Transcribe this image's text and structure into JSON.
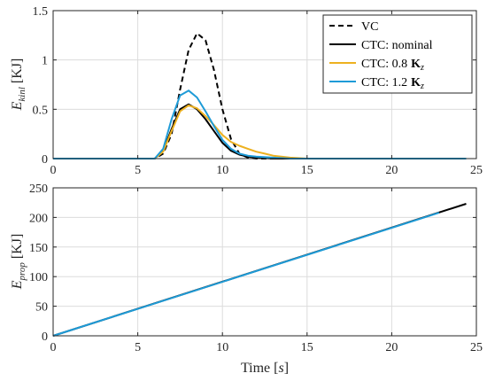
{
  "chart_data": [
    {
      "type": "line",
      "ylabel": {
        "base": "E",
        "sub": "kinl",
        "unit": "[KJ]"
      },
      "xlim": [
        0,
        25
      ],
      "ylim": [
        0,
        1.5
      ],
      "xticks": [
        "0",
        "5",
        "10",
        "15",
        "20",
        "25"
      ],
      "yticks": [
        "0",
        "0.5",
        "1",
        "1.5"
      ],
      "grid": true,
      "legend": {
        "position": "top-right",
        "entries": [
          {
            "text": "VC"
          },
          {
            "text": "CTC: nominal"
          },
          {
            "text": "CTC: 0.8",
            "bold": "K",
            "sub": "z"
          },
          {
            "text": "CTC: 1.2",
            "bold": "K",
            "sub": "z"
          }
        ]
      },
      "series": [
        {
          "name": "VC",
          "color": "#000000",
          "dash": "6,4",
          "x": [
            0,
            6.0,
            6.5,
            7.0,
            7.5,
            8.0,
            8.5,
            9.0,
            9.5,
            10.0,
            10.5,
            11.0,
            11.5,
            12.0,
            24.4
          ],
          "y": [
            0,
            0.0,
            0.05,
            0.25,
            0.7,
            1.1,
            1.27,
            1.2,
            0.9,
            0.5,
            0.2,
            0.05,
            0.01,
            0.0,
            0.0
          ]
        },
        {
          "name": "CTC: nominal",
          "color": "#000000",
          "x": [
            0,
            6.0,
            6.5,
            7.0,
            7.5,
            8.0,
            8.5,
            9.0,
            9.5,
            10.0,
            10.5,
            11.0,
            11.5,
            12.0,
            13.0,
            24.4
          ],
          "y": [
            0,
            0.0,
            0.08,
            0.3,
            0.5,
            0.55,
            0.5,
            0.4,
            0.28,
            0.16,
            0.08,
            0.04,
            0.02,
            0.01,
            0.0,
            0.0
          ]
        },
        {
          "name": "CTC: 0.8 Kz",
          "color": "#EDB120",
          "x": [
            0,
            6.0,
            6.5,
            7.0,
            7.5,
            8.0,
            8.5,
            9.0,
            9.5,
            10.0,
            10.5,
            11.0,
            11.5,
            12.0,
            12.5,
            13.0,
            14.0,
            15.0,
            24.4
          ],
          "y": [
            0,
            0.0,
            0.07,
            0.28,
            0.48,
            0.54,
            0.51,
            0.43,
            0.34,
            0.24,
            0.17,
            0.13,
            0.1,
            0.07,
            0.05,
            0.03,
            0.01,
            0.0,
            0.0
          ]
        },
        {
          "name": "CTC: 1.2 Kz",
          "color": "#1E9BD7",
          "x": [
            0,
            6.0,
            6.5,
            7.0,
            7.5,
            8.0,
            8.5,
            9.0,
            9.5,
            10.0,
            10.5,
            11.0,
            11.5,
            12.0,
            13.0,
            14.0,
            24.4
          ],
          "y": [
            0,
            0.0,
            0.1,
            0.4,
            0.64,
            0.69,
            0.62,
            0.48,
            0.33,
            0.19,
            0.1,
            0.05,
            0.03,
            0.02,
            0.01,
            0.0,
            0.0
          ]
        }
      ]
    },
    {
      "type": "line",
      "ylabel": {
        "base": "E",
        "sub": "prop",
        "unit": "[KJ]"
      },
      "xlabel": {
        "text": "Time",
        "unit": "s"
      },
      "xlim": [
        0,
        25
      ],
      "ylim": [
        0,
        250
      ],
      "xticks": [
        "0",
        "5",
        "10",
        "15",
        "20",
        "25"
      ],
      "yticks": [
        "0",
        "50",
        "100",
        "150",
        "200",
        "250"
      ],
      "grid": true,
      "series": [
        {
          "name": "CTC: nominal",
          "color": "#000000",
          "x": [
            0,
            24.4
          ],
          "y": [
            0,
            223
          ]
        },
        {
          "name": "CTC: 1.2 Kz",
          "color": "#1E9BD7",
          "x": [
            0,
            22.8
          ],
          "y": [
            0,
            208
          ]
        }
      ]
    }
  ]
}
